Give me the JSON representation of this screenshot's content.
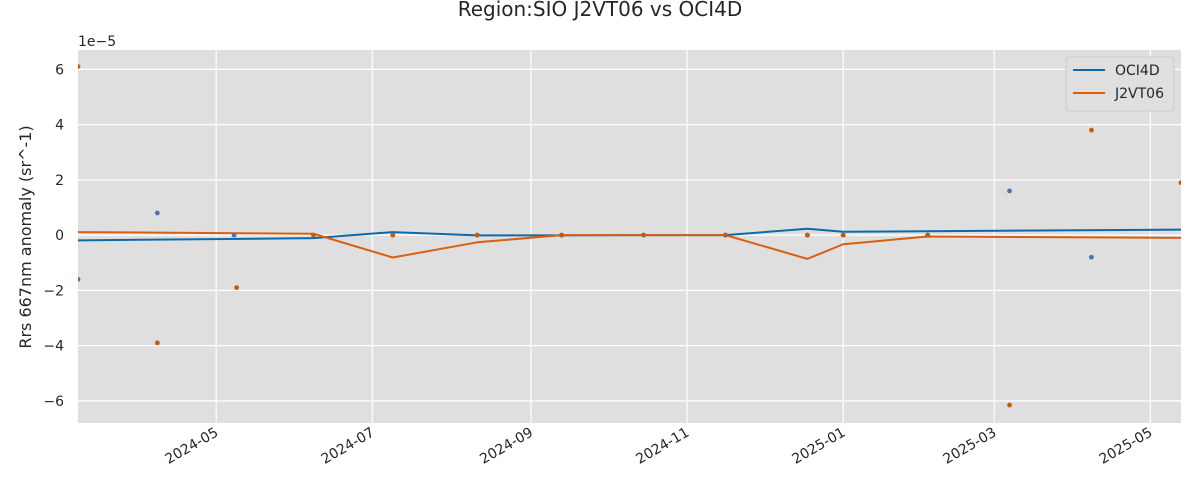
{
  "chart_data": {
    "type": "line",
    "title": "Region:SIO J2VT06 vs OCI4D",
    "xlabel": "",
    "ylabel": "Rrs 667nm anomaly (sr^-1)",
    "y_offset_label": "1e−5",
    "x_axis_type": "date",
    "xlim": [
      "2024-03-08",
      "2025-05-13"
    ],
    "ylim": [
      -6.8e-05,
      6.7e-05
    ],
    "x_ticks": [
      {
        "date": "2024-05-01",
        "label": "2024-05"
      },
      {
        "date": "2024-07-01",
        "label": "2024-07"
      },
      {
        "date": "2024-09-01",
        "label": "2024-09"
      },
      {
        "date": "2024-11-01",
        "label": "2024-11"
      },
      {
        "date": "2025-01-01",
        "label": "2025-01"
      },
      {
        "date": "2025-03-01",
        "label": "2025-03"
      },
      {
        "date": "2025-05-01",
        "label": "2025-05"
      }
    ],
    "y_ticks": [
      {
        "value": -6e-05,
        "label": "−6"
      },
      {
        "value": -4e-05,
        "label": "−4"
      },
      {
        "value": -2e-05,
        "label": "−2"
      },
      {
        "value": 0,
        "label": "0"
      },
      {
        "value": 2e-05,
        "label": "2"
      },
      {
        "value": 4e-05,
        "label": "4"
      },
      {
        "value": 6e-05,
        "label": "6"
      }
    ],
    "grid": true,
    "legend_position": "top-right",
    "background_color": "#dfdfdf",
    "grid_color": "#ffffff",
    "series": [
      {
        "name": "OCI4D",
        "color": "#0d6aa8",
        "point_color": "#4c72b0",
        "line": [
          {
            "x": "2024-03-08",
            "y": -1.9e-06
          },
          {
            "x": "2024-06-08",
            "y": -1.1e-06
          },
          {
            "x": "2024-07-09",
            "y": 1.1e-06
          },
          {
            "x": "2024-08-11",
            "y": -1e-07
          },
          {
            "x": "2024-09-13",
            "y": -1e-07
          },
          {
            "x": "2024-10-15",
            "y": 0
          },
          {
            "x": "2024-11-16",
            "y": 0
          },
          {
            "x": "2024-12-18",
            "y": 2.3e-06
          },
          {
            "x": "2025-01-01",
            "y": 1.2e-06
          },
          {
            "x": "2025-05-13",
            "y": 2e-06
          }
        ],
        "points": [
          {
            "x": "2024-03-08",
            "y": -1.6e-05
          },
          {
            "x": "2024-04-08",
            "y": 8e-06
          },
          {
            "x": "2024-05-08",
            "y": 0
          },
          {
            "x": "2024-07-09",
            "y": 0
          },
          {
            "x": "2024-08-11",
            "y": 0
          },
          {
            "x": "2024-09-13",
            "y": 0
          },
          {
            "x": "2024-10-15",
            "y": 0
          },
          {
            "x": "2024-11-16",
            "y": 0
          },
          {
            "x": "2024-12-18",
            "y": 0
          },
          {
            "x": "2025-01-01",
            "y": 0
          },
          {
            "x": "2025-02-03",
            "y": 0
          },
          {
            "x": "2025-03-07",
            "y": 1.6e-05
          },
          {
            "x": "2025-04-08",
            "y": -8e-06
          }
        ]
      },
      {
        "name": "J2VT06",
        "color": "#d95f0e",
        "point_color": "#c45a12",
        "line": [
          {
            "x": "2024-03-08",
            "y": 1.1e-06
          },
          {
            "x": "2024-06-08",
            "y": 5e-07
          },
          {
            "x": "2024-07-09",
            "y": -8.1e-06
          },
          {
            "x": "2024-08-11",
            "y": -2.6e-06
          },
          {
            "x": "2024-09-13",
            "y": 0
          },
          {
            "x": "2024-10-15",
            "y": 0
          },
          {
            "x": "2024-11-16",
            "y": 0
          },
          {
            "x": "2024-12-18",
            "y": -8.6e-06
          },
          {
            "x": "2025-01-01",
            "y": -3.3e-06
          },
          {
            "x": "2025-02-03",
            "y": -5e-07
          },
          {
            "x": "2025-05-13",
            "y": -1e-06
          }
        ],
        "points": [
          {
            "x": "2024-03-08",
            "y": 6.1e-05
          },
          {
            "x": "2024-04-08",
            "y": -3.9e-05
          },
          {
            "x": "2024-05-09",
            "y": -1.9e-05
          },
          {
            "x": "2024-06-08",
            "y": 0
          },
          {
            "x": "2024-07-09",
            "y": 0
          },
          {
            "x": "2024-08-11",
            "y": 0
          },
          {
            "x": "2024-09-13",
            "y": 0
          },
          {
            "x": "2024-10-15",
            "y": 0
          },
          {
            "x": "2024-11-16",
            "y": 0
          },
          {
            "x": "2024-12-18",
            "y": 0
          },
          {
            "x": "2025-01-01",
            "y": 0
          },
          {
            "x": "2025-02-03",
            "y": 0
          },
          {
            "x": "2025-03-07",
            "y": -6.15e-05
          },
          {
            "x": "2025-04-08",
            "y": 3.8e-05
          },
          {
            "x": "2025-05-13",
            "y": 1.9e-05
          }
        ]
      }
    ]
  }
}
